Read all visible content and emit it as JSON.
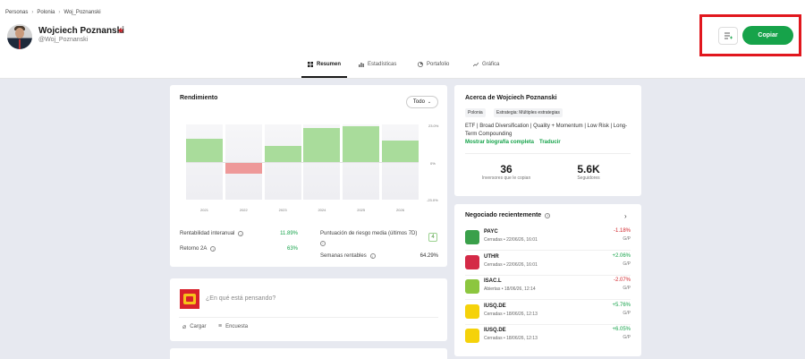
{
  "breadcrumb": [
    "Personas",
    "Polonia",
    "Woj_Poznanski"
  ],
  "user": {
    "name": "Wojciech Poznanski",
    "handle": "@Woj_Poznanski"
  },
  "actions": {
    "copy_label": "Copiar"
  },
  "tabs": [
    {
      "label": "Resumen",
      "icon": "grid-icon",
      "active": true
    },
    {
      "label": "Estadísticas",
      "icon": "bar-chart-icon",
      "active": false
    },
    {
      "label": "Portafolio",
      "icon": "pie-chart-icon",
      "active": false
    },
    {
      "label": "Gráfica",
      "icon": "line-chart-icon",
      "active": false
    }
  ],
  "performance": {
    "title": "Rendimiento",
    "filter": "Todo",
    "stats": [
      {
        "label": "Rentabilidad interanual",
        "value": "11.89%"
      },
      {
        "label": "Retorno 2A",
        "value": "63%"
      },
      {
        "label": "Puntuación de riesgo media (últimos 7D)",
        "value": "4"
      },
      {
        "label": "Semanas rentables",
        "value": "64.29%"
      }
    ]
  },
  "chart_data": {
    "type": "bar",
    "categories": [
      "2021",
      "2022",
      "2023",
      "2024",
      "2025",
      "2026"
    ],
    "values": [
      14,
      -7,
      10,
      21,
      22,
      13
    ],
    "y_tick_labels": [
      "23.0%",
      "0%",
      "-23.0%"
    ],
    "ylim": [
      -23,
      23
    ],
    "bar_colors": {
      "positive": "#a9dc9b",
      "negative": "#ee9999"
    }
  },
  "post": {
    "placeholder": "¿En qué está pensando?",
    "upload_label": "Cargar",
    "poll_label": "Encuesta"
  },
  "about": {
    "title": "Acerca de Wojciech Poznanski",
    "tags": [
      "Polonia",
      "Estrategia: Múltiples estrategias"
    ],
    "bio": "ETF | Broad Diversification | Quality + Momentum | Low Risk | Long-Term Compounding",
    "show_bio_label": "Mostrar biografía completa",
    "translate_label": "Traducir",
    "copiers_value": "36",
    "copiers_label": "Inversores que le copian",
    "followers_value": "5.6K",
    "followers_label": "Seguidores"
  },
  "recent": {
    "title": "Negociado recientemente",
    "trades": [
      {
        "ticker": "PAYC",
        "status": "Cerradas",
        "date": "22/06/26, 16:01",
        "change": "-1.18%",
        "gp": "G/P",
        "logo_color": "#3aa04a",
        "positive": false
      },
      {
        "ticker": "UTHR",
        "status": "Cerradas",
        "date": "22/06/26, 16:01",
        "change": "+2.06%",
        "gp": "G/P",
        "logo_color": "#d42a47",
        "positive": true
      },
      {
        "ticker": "ISAC.L",
        "status": "Abiertas",
        "date": "18/06/26, 12:14",
        "change": "-2.07%",
        "gp": "G/P",
        "logo_color": "#8cc63f",
        "positive": false
      },
      {
        "ticker": "IUSQ.DE",
        "status": "Cerradas",
        "date": "18/06/26, 12:13",
        "change": "+5.76%",
        "gp": "G/P",
        "logo_color": "#f5d20a",
        "positive": true
      },
      {
        "ticker": "IUSQ.DE",
        "status": "Cerradas",
        "date": "18/06/26, 12:13",
        "change": "+6.05%",
        "gp": "G/P",
        "logo_color": "#f5d20a",
        "positive": true
      }
    ]
  }
}
